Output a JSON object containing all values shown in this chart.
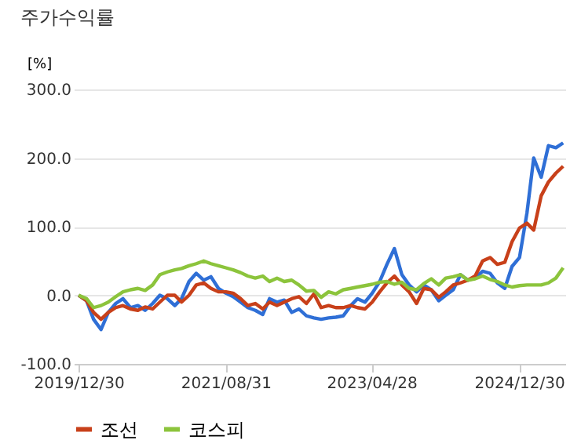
{
  "chart_data": {
    "type": "line",
    "title": "주가수익률",
    "ylabel": "[%]",
    "x": [
      "2019-12-30",
      "2020-02-01",
      "2020-03-01",
      "2020-04-01",
      "2020-05-01",
      "2020-06-01",
      "2020-07-01",
      "2020-08-01",
      "2020-09-01",
      "2020-10-01",
      "2020-11-01",
      "2020-12-01",
      "2021-01-01",
      "2021-02-01",
      "2021-03-01",
      "2021-04-01",
      "2021-05-01",
      "2021-06-01",
      "2021-07-01",
      "2021-08-01",
      "2021-09-01",
      "2021-10-01",
      "2021-11-01",
      "2021-12-01",
      "2022-01-01",
      "2022-02-01",
      "2022-03-01",
      "2022-04-01",
      "2022-05-01",
      "2022-06-01",
      "2022-07-01",
      "2022-08-01",
      "2022-09-01",
      "2022-10-01",
      "2022-11-01",
      "2022-12-01",
      "2023-01-01",
      "2023-02-01",
      "2023-03-01",
      "2023-04-01",
      "2023-05-01",
      "2023-06-01",
      "2023-07-01",
      "2023-08-01",
      "2023-09-01",
      "2023-10-01",
      "2023-11-01",
      "2023-12-01",
      "2024-01-01",
      "2024-02-01",
      "2024-03-01",
      "2024-04-01",
      "2024-05-01",
      "2024-06-01",
      "2024-07-01",
      "2024-08-01",
      "2024-09-01",
      "2024-10-01",
      "2024-11-01",
      "2024-12-01",
      "2025-01-01",
      "2025-02-01",
      "2025-03-01",
      "2025-04-01",
      "2025-05-01",
      "2025-06-01",
      "2025-07-01"
    ],
    "series": [
      {
        "color": "#2f6fd6",
        "values": [
          0,
          -8,
          -35,
          -50,
          -25,
          -12,
          -5,
          -18,
          -15,
          -22,
          -12,
          0,
          -5,
          -15,
          -5,
          20,
          32,
          22,
          27,
          10,
          3,
          -2,
          -10,
          -18,
          -22,
          -28,
          -5,
          -10,
          -7,
          -25,
          -20,
          -30,
          -33,
          -35,
          -33,
          -32,
          -30,
          -15,
          -5,
          -10,
          3,
          20,
          45,
          68,
          30,
          15,
          5,
          15,
          8,
          -8,
          0,
          8,
          30,
          22,
          25,
          35,
          32,
          18,
          10,
          42,
          55,
          120,
          200,
          172,
          218,
          215,
          222
        ]
      },
      {
        "name": "조선",
        "color": "#c8401a",
        "values": [
          0,
          -8,
          -25,
          -35,
          -25,
          -18,
          -15,
          -20,
          -22,
          -17,
          -20,
          -10,
          0,
          0,
          -10,
          0,
          15,
          18,
          10,
          5,
          5,
          3,
          -5,
          -15,
          -12,
          -20,
          -10,
          -15,
          -10,
          -5,
          -2,
          -12,
          2,
          -18,
          -15,
          -18,
          -18,
          -15,
          -18,
          -20,
          -10,
          5,
          18,
          28,
          15,
          5,
          -12,
          10,
          8,
          -3,
          5,
          15,
          18,
          22,
          28,
          50,
          55,
          45,
          48,
          78,
          98,
          105,
          95,
          145,
          165,
          178,
          188
        ]
      },
      {
        "name": "코스피",
        "color": "#8cc43c",
        "values": [
          0,
          -5,
          -18,
          -15,
          -10,
          -2,
          5,
          8,
          10,
          7,
          15,
          30,
          34,
          37,
          39,
          43,
          46,
          50,
          46,
          43,
          40,
          37,
          33,
          28,
          25,
          28,
          20,
          25,
          20,
          22,
          15,
          6,
          7,
          -3,
          5,
          2,
          8,
          10,
          12,
          14,
          16,
          19,
          20,
          16,
          19,
          10,
          8,
          17,
          24,
          15,
          25,
          27,
          30,
          22,
          24,
          28,
          23,
          20,
          15,
          12,
          14,
          15,
          15,
          15,
          18,
          25,
          40
        ]
      }
    ],
    "xlim": [
      "2019-12-10",
      "2025-07-10"
    ],
    "xticks": [
      {
        "value": "2019-12-30",
        "label": "2019/12/30"
      },
      {
        "value": "2021-08-31",
        "label": "2021/08/31"
      },
      {
        "value": "2023-04-28",
        "label": "2023/04/28"
      },
      {
        "value": "2024-12-30",
        "label": "2024/12/30"
      }
    ],
    "ylim": [
      -100,
      300
    ],
    "yticks": [
      {
        "value": -100,
        "label": "-100.0"
      },
      {
        "value": 0,
        "label": "0.0"
      },
      {
        "value": 100,
        "label": "100.0"
      },
      {
        "value": 200,
        "label": "200.0"
      },
      {
        "value": 300,
        "label": "300.0"
      }
    ],
    "grid": "y",
    "legend": "bottom"
  }
}
